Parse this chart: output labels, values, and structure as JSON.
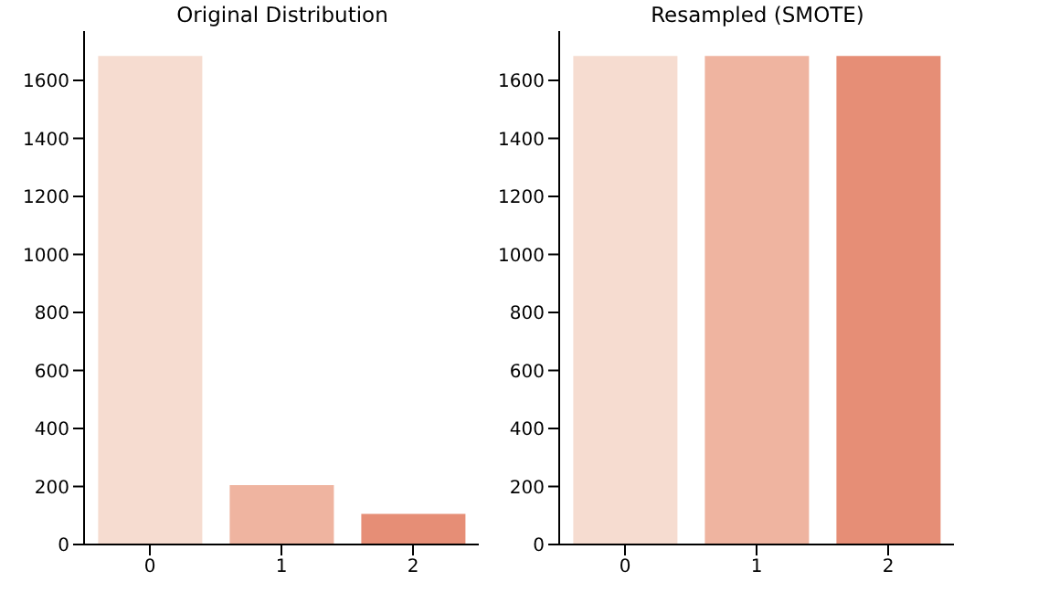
{
  "chart_data": [
    {
      "type": "bar",
      "title": "Original Distribution",
      "categories": [
        "0",
        "1",
        "2"
      ],
      "values": [
        1687,
        208,
        109
      ],
      "colors": [
        "#f6dcd0",
        "#efb4a0",
        "#e68e76"
      ],
      "ylim": [
        0,
        1770
      ],
      "yticks": [
        0,
        200,
        400,
        600,
        800,
        1000,
        1200,
        1400,
        1600
      ]
    },
    {
      "type": "bar",
      "title": "Resampled (SMOTE)",
      "categories": [
        "0",
        "1",
        "2"
      ],
      "values": [
        1687,
        1687,
        1687
      ],
      "colors": [
        "#f6dcd0",
        "#efb4a0",
        "#e68e76"
      ],
      "ylim": [
        0,
        1770
      ],
      "yticks": [
        0,
        200,
        400,
        600,
        800,
        1000,
        1200,
        1400,
        1600
      ]
    }
  ]
}
